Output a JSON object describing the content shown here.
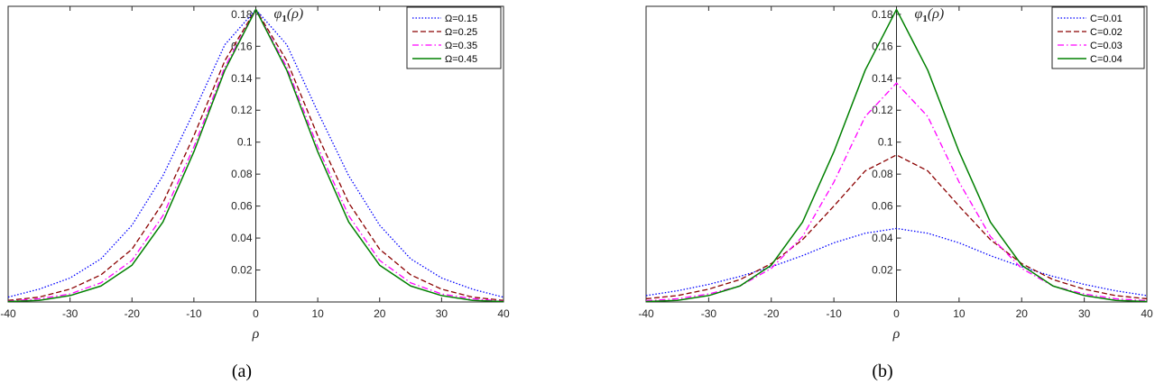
{
  "chart_data": [
    {
      "type": "line",
      "panel_label": "(a)",
      "xlabel": "ρ",
      "ylabel_main": "φ",
      "ylabel_sub": "1",
      "ylabel_arg": "(ρ)",
      "xlim": [
        -40,
        40
      ],
      "ylim": [
        0,
        0.185
      ],
      "xticks": [
        -40,
        -30,
        -20,
        -10,
        0,
        10,
        20,
        30,
        40
      ],
      "yticks": [
        0.02,
        0.04,
        0.06,
        0.08,
        0.1,
        0.12,
        0.14,
        0.16,
        0.18
      ],
      "legend_position": "top-right",
      "series": [
        {
          "name": "Ω=0.15",
          "color": "#0000ff",
          "style": "dotted",
          "x": [
            -40,
            -35,
            -30,
            -25,
            -20,
            -15,
            -10,
            -5,
            0,
            5,
            10,
            15,
            20,
            25,
            30,
            35,
            40
          ],
          "y": [
            0.003,
            0.008,
            0.015,
            0.027,
            0.048,
            0.079,
            0.119,
            0.161,
            0.183,
            0.161,
            0.119,
            0.079,
            0.048,
            0.027,
            0.015,
            0.008,
            0.003
          ]
        },
        {
          "name": "Ω=0.25",
          "color": "#8b0000",
          "style": "dashed",
          "x": [
            -40,
            -35,
            -30,
            -25,
            -20,
            -15,
            -10,
            -5,
            0,
            5,
            10,
            15,
            20,
            25,
            30,
            35,
            40
          ],
          "y": [
            0.001,
            0.003,
            0.008,
            0.017,
            0.033,
            0.062,
            0.104,
            0.151,
            0.183,
            0.151,
            0.104,
            0.062,
            0.033,
            0.017,
            0.008,
            0.003,
            0.001
          ]
        },
        {
          "name": "Ω=0.35",
          "color": "#ff00ff",
          "style": "dashdot",
          "x": [
            -40,
            -35,
            -30,
            -25,
            -20,
            -15,
            -10,
            -5,
            0,
            5,
            10,
            15,
            20,
            25,
            30,
            35,
            40
          ],
          "y": [
            0.0005,
            0.002,
            0.005,
            0.012,
            0.026,
            0.054,
            0.097,
            0.147,
            0.183,
            0.147,
            0.097,
            0.054,
            0.026,
            0.012,
            0.005,
            0.002,
            0.0005
          ]
        },
        {
          "name": "Ω=0.45",
          "color": "#008000",
          "style": "solid",
          "x": [
            -40,
            -35,
            -30,
            -25,
            -20,
            -15,
            -10,
            -5,
            0,
            5,
            10,
            15,
            20,
            25,
            30,
            35,
            40
          ],
          "y": [
            0.0003,
            0.001,
            0.004,
            0.01,
            0.023,
            0.05,
            0.094,
            0.145,
            0.183,
            0.145,
            0.094,
            0.05,
            0.023,
            0.01,
            0.004,
            0.001,
            0.0003
          ]
        }
      ]
    },
    {
      "type": "line",
      "panel_label": "(b)",
      "xlabel": "ρ",
      "ylabel_main": "φ",
      "ylabel_sub": "1",
      "ylabel_arg": "(ρ)",
      "xlim": [
        -40,
        40
      ],
      "ylim": [
        0,
        0.185
      ],
      "xticks": [
        -40,
        -30,
        -20,
        -10,
        0,
        10,
        20,
        30,
        40
      ],
      "yticks": [
        0.02,
        0.04,
        0.06,
        0.08,
        0.1,
        0.12,
        0.14,
        0.16,
        0.18
      ],
      "legend_position": "top-right",
      "series": [
        {
          "name": "C=0.01",
          "color": "#0000ff",
          "style": "dotted",
          "x": [
            -40,
            -35,
            -30,
            -25,
            -20,
            -15,
            -10,
            -5,
            0,
            5,
            10,
            15,
            20,
            25,
            30,
            35,
            40
          ],
          "y": [
            0.004,
            0.007,
            0.011,
            0.016,
            0.022,
            0.029,
            0.037,
            0.043,
            0.046,
            0.043,
            0.037,
            0.029,
            0.022,
            0.016,
            0.011,
            0.007,
            0.004
          ]
        },
        {
          "name": "C=0.02",
          "color": "#8b0000",
          "style": "dashed",
          "x": [
            -40,
            -35,
            -30,
            -25,
            -20,
            -15,
            -10,
            -5,
            0,
            5,
            10,
            15,
            20,
            25,
            30,
            35,
            40
          ],
          "y": [
            0.002,
            0.004,
            0.008,
            0.014,
            0.024,
            0.039,
            0.06,
            0.082,
            0.092,
            0.082,
            0.06,
            0.039,
            0.024,
            0.014,
            0.008,
            0.004,
            0.002
          ]
        },
        {
          "name": "C=0.03",
          "color": "#ff00ff",
          "style": "dashdot",
          "x": [
            -40,
            -35,
            -30,
            -25,
            -20,
            -15,
            -10,
            -5,
            0,
            5,
            10,
            15,
            20,
            25,
            30,
            35,
            40
          ],
          "y": [
            0.0008,
            0.002,
            0.005,
            0.01,
            0.021,
            0.041,
            0.075,
            0.116,
            0.137,
            0.116,
            0.075,
            0.041,
            0.021,
            0.01,
            0.005,
            0.002,
            0.0008
          ]
        },
        {
          "name": "C=0.04",
          "color": "#008000",
          "style": "solid",
          "x": [
            -40,
            -35,
            -30,
            -25,
            -20,
            -15,
            -10,
            -5,
            0,
            5,
            10,
            15,
            20,
            25,
            30,
            35,
            40
          ],
          "y": [
            0.0003,
            0.001,
            0.004,
            0.01,
            0.023,
            0.05,
            0.094,
            0.145,
            0.183,
            0.145,
            0.094,
            0.05,
            0.023,
            0.01,
            0.004,
            0.001,
            0.0003
          ]
        }
      ]
    }
  ]
}
